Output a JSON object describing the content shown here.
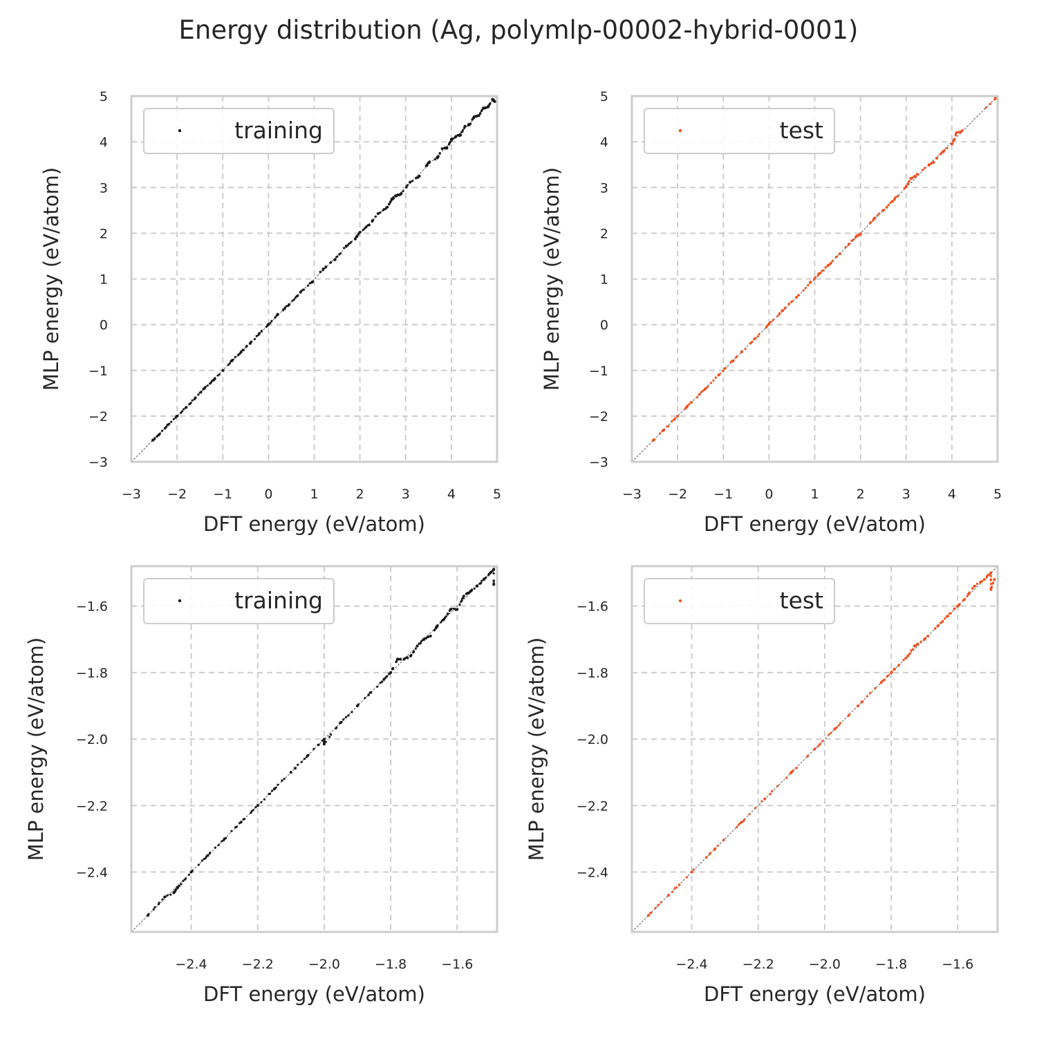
{
  "figure": {
    "title": "Energy distribution (Ag, polymlp-00002-hybrid-0001)"
  },
  "colors": {
    "training": "#1a1a1a",
    "test": "#f0501e",
    "grid": "#cccccc",
    "frame": "#cccccc",
    "diagonal": "#555555"
  },
  "chart_data": [
    {
      "type": "scatter",
      "panel": "top-left",
      "xlabel": "DFT energy (eV/atom)",
      "ylabel": "MLP energy (eV/atom)",
      "xlim": [
        -3,
        5
      ],
      "ylim": [
        -3,
        5
      ],
      "xticks": [
        -3,
        -2,
        -1,
        0,
        1,
        2,
        3,
        4,
        5
      ],
      "yticks": [
        -3,
        -2,
        -1,
        0,
        1,
        2,
        3,
        4,
        5
      ],
      "xtick_labels": [
        "−3",
        "−2",
        "−1",
        "0",
        "1",
        "2",
        "3",
        "4",
        "5"
      ],
      "ytick_labels": [
        "−3",
        "−2",
        "−1",
        "0",
        "1",
        "2",
        "3",
        "4",
        "5"
      ],
      "grid": true,
      "legend_position": "upper-left",
      "series": [
        {
          "name": "training",
          "color_key": "training",
          "points": [
            [
              -2.53,
              -2.53
            ],
            [
              -2.4,
              -2.41
            ],
            [
              -2.2,
              -2.19
            ],
            [
              -2.0,
              -2.0
            ],
            [
              -1.8,
              -1.81
            ],
            [
              -1.6,
              -1.6
            ],
            [
              -1.4,
              -1.39
            ],
            [
              -1.2,
              -1.21
            ],
            [
              -1.0,
              -1.0
            ],
            [
              -0.8,
              -0.79
            ],
            [
              -0.6,
              -0.6
            ],
            [
              -0.4,
              -0.41
            ],
            [
              -0.2,
              -0.19
            ],
            [
              0.0,
              0.0
            ],
            [
              0.2,
              0.22
            ],
            [
              0.45,
              0.44
            ],
            [
              0.7,
              0.71
            ],
            [
              0.95,
              0.93
            ],
            [
              1.2,
              1.22
            ],
            [
              1.45,
              1.42
            ],
            [
              1.7,
              1.72
            ],
            [
              1.9,
              1.88
            ],
            [
              2.0,
              2.02
            ],
            [
              2.2,
              2.18
            ],
            [
              2.4,
              2.43
            ],
            [
              2.6,
              2.57
            ],
            [
              2.7,
              2.75
            ],
            [
              2.8,
              2.83
            ],
            [
              2.9,
              2.86
            ],
            [
              3.1,
              3.12
            ],
            [
              3.3,
              3.25
            ],
            [
              3.5,
              3.54
            ],
            [
              3.7,
              3.66
            ],
            [
              3.8,
              3.85
            ],
            [
              3.9,
              3.86
            ],
            [
              4.0,
              4.05
            ],
            [
              4.1,
              4.12
            ],
            [
              4.2,
              4.15
            ],
            [
              4.3,
              4.34
            ],
            [
              4.4,
              4.38
            ],
            [
              4.5,
              4.55
            ],
            [
              4.6,
              4.57
            ],
            [
              4.7,
              4.74
            ],
            [
              4.8,
              4.76
            ],
            [
              4.9,
              4.93
            ],
            [
              4.95,
              4.88
            ]
          ]
        }
      ]
    },
    {
      "type": "scatter",
      "panel": "top-right",
      "xlabel": "DFT energy (eV/atom)",
      "ylabel": "MLP energy (eV/atom)",
      "xlim": [
        -3,
        5
      ],
      "ylim": [
        -3,
        5
      ],
      "xticks": [
        -3,
        -2,
        -1,
        0,
        1,
        2,
        3,
        4,
        5
      ],
      "yticks": [
        -3,
        -2,
        -1,
        0,
        1,
        2,
        3,
        4,
        5
      ],
      "xtick_labels": [
        "−3",
        "−2",
        "−1",
        "0",
        "1",
        "2",
        "3",
        "4",
        "5"
      ],
      "ytick_labels": [
        "−3",
        "−2",
        "−1",
        "0",
        "1",
        "2",
        "3",
        "4",
        "5"
      ],
      "grid": true,
      "legend_position": "upper-left",
      "series": [
        {
          "name": "test",
          "color_key": "test",
          "points": [
            [
              -2.53,
              -2.53
            ],
            [
              -2.3,
              -2.3
            ],
            [
              -2.0,
              -2.0
            ],
            [
              -1.7,
              -1.7
            ],
            [
              -1.4,
              -1.41
            ],
            [
              -1.1,
              -1.1
            ],
            [
              -0.8,
              -0.8
            ],
            [
              -0.6,
              -0.6
            ],
            [
              -0.3,
              -0.3
            ],
            [
              0.0,
              0.02
            ],
            [
              0.3,
              0.31
            ],
            [
              0.6,
              0.6
            ],
            [
              0.9,
              0.92
            ],
            [
              1.1,
              1.12
            ],
            [
              1.3,
              1.3
            ],
            [
              1.55,
              1.55
            ],
            [
              1.9,
              1.92
            ],
            [
              2.0,
              1.98
            ],
            [
              2.3,
              2.32
            ],
            [
              2.5,
              2.5
            ],
            [
              2.7,
              2.7
            ],
            [
              3.0,
              3.02
            ],
            [
              3.1,
              3.2
            ],
            [
              3.2,
              3.25
            ],
            [
              3.5,
              3.5
            ],
            [
              3.6,
              3.55
            ],
            [
              3.8,
              3.78
            ],
            [
              4.0,
              3.95
            ],
            [
              4.05,
              4.05
            ],
            [
              4.1,
              4.2
            ],
            [
              4.2,
              4.22
            ],
            [
              4.95,
              4.95
            ]
          ]
        }
      ]
    },
    {
      "type": "scatter",
      "panel": "bottom-left",
      "xlabel": "DFT energy (eV/atom)",
      "ylabel": "MLP energy (eV/atom)",
      "xlim": [
        -2.58,
        -1.48
      ],
      "ylim": [
        -2.58,
        -1.48
      ],
      "xticks": [
        -2.4,
        -2.2,
        -2.0,
        -1.8,
        -1.6
      ],
      "yticks": [
        -2.4,
        -2.2,
        -2.0,
        -1.8,
        -1.6
      ],
      "xtick_labels": [
        "−2.4",
        "−2.2",
        "−2.0",
        "−1.8",
        "−1.6"
      ],
      "ytick_labels": [
        "−2.4",
        "−2.2",
        "−2.0",
        "−1.8",
        "−1.6"
      ],
      "grid": true,
      "legend_position": "upper-left",
      "series": [
        {
          "name": "training",
          "color_key": "training",
          "points": [
            [
              -2.53,
              -2.53
            ],
            [
              -2.48,
              -2.475
            ],
            [
              -2.45,
              -2.46
            ],
            [
              -2.44,
              -2.445
            ],
            [
              -2.4,
              -2.4
            ],
            [
              -2.35,
              -2.35
            ],
            [
              -2.3,
              -2.3
            ],
            [
              -2.25,
              -2.25
            ],
            [
              -2.2,
              -2.2
            ],
            [
              -2.15,
              -2.15
            ],
            [
              -2.1,
              -2.1
            ],
            [
              -2.05,
              -2.05
            ],
            [
              -2.0,
              -2.0
            ],
            [
              -2.0,
              -2.015
            ],
            [
              -1.95,
              -1.95
            ],
            [
              -1.9,
              -1.9
            ],
            [
              -1.86,
              -1.86
            ],
            [
              -1.82,
              -1.82
            ],
            [
              -1.8,
              -1.8
            ],
            [
              -1.78,
              -1.76
            ],
            [
              -1.76,
              -1.76
            ],
            [
              -1.74,
              -1.75
            ],
            [
              -1.72,
              -1.72
            ],
            [
              -1.7,
              -1.7
            ],
            [
              -1.68,
              -1.69
            ],
            [
              -1.66,
              -1.66
            ],
            [
              -1.64,
              -1.64
            ],
            [
              -1.62,
              -1.61
            ],
            [
              -1.6,
              -1.61
            ],
            [
              -1.58,
              -1.57
            ],
            [
              -1.56,
              -1.555
            ],
            [
              -1.54,
              -1.54
            ],
            [
              -1.52,
              -1.52
            ],
            [
              -1.5,
              -1.5
            ],
            [
              -1.49,
              -1.49
            ],
            [
              -1.49,
              -1.535
            ]
          ]
        }
      ]
    },
    {
      "type": "scatter",
      "panel": "bottom-right",
      "xlabel": "DFT energy (eV/atom)",
      "ylabel": "MLP energy (eV/atom)",
      "xlim": [
        -2.58,
        -1.48
      ],
      "ylim": [
        -2.58,
        -1.48
      ],
      "xticks": [
        -2.4,
        -2.2,
        -2.0,
        -1.8,
        -1.6
      ],
      "yticks": [
        -2.4,
        -2.2,
        -2.0,
        -1.8,
        -1.6
      ],
      "xtick_labels": [
        "−2.4",
        "−2.2",
        "−2.0",
        "−1.8",
        "−1.6"
      ],
      "ytick_labels": [
        "−2.4",
        "−2.2",
        "−2.0",
        "−1.8",
        "−1.6"
      ],
      "grid": true,
      "legend_position": "upper-left",
      "series": [
        {
          "name": "test",
          "color_key": "test",
          "points": [
            [
              -2.53,
              -2.53
            ],
            [
              -2.47,
              -2.47
            ],
            [
              -2.4,
              -2.4
            ],
            [
              -2.33,
              -2.33
            ],
            [
              -2.25,
              -2.25
            ],
            [
              -2.18,
              -2.18
            ],
            [
              -2.1,
              -2.1
            ],
            [
              -2.03,
              -2.03
            ],
            [
              -1.97,
              -1.97
            ],
            [
              -1.9,
              -1.9
            ],
            [
              -1.83,
              -1.83
            ],
            [
              -1.8,
              -1.8
            ],
            [
              -1.79,
              -1.79
            ],
            [
              -1.75,
              -1.75
            ],
            [
              -1.73,
              -1.72
            ],
            [
              -1.7,
              -1.7
            ],
            [
              -1.66,
              -1.66
            ],
            [
              -1.63,
              -1.63
            ],
            [
              -1.6,
              -1.6
            ],
            [
              -1.58,
              -1.58
            ],
            [
              -1.55,
              -1.54
            ],
            [
              -1.52,
              -1.52
            ],
            [
              -1.5,
              -1.5
            ],
            [
              -1.49,
              -1.52
            ],
            [
              -1.5,
              -1.55
            ]
          ]
        }
      ]
    }
  ]
}
